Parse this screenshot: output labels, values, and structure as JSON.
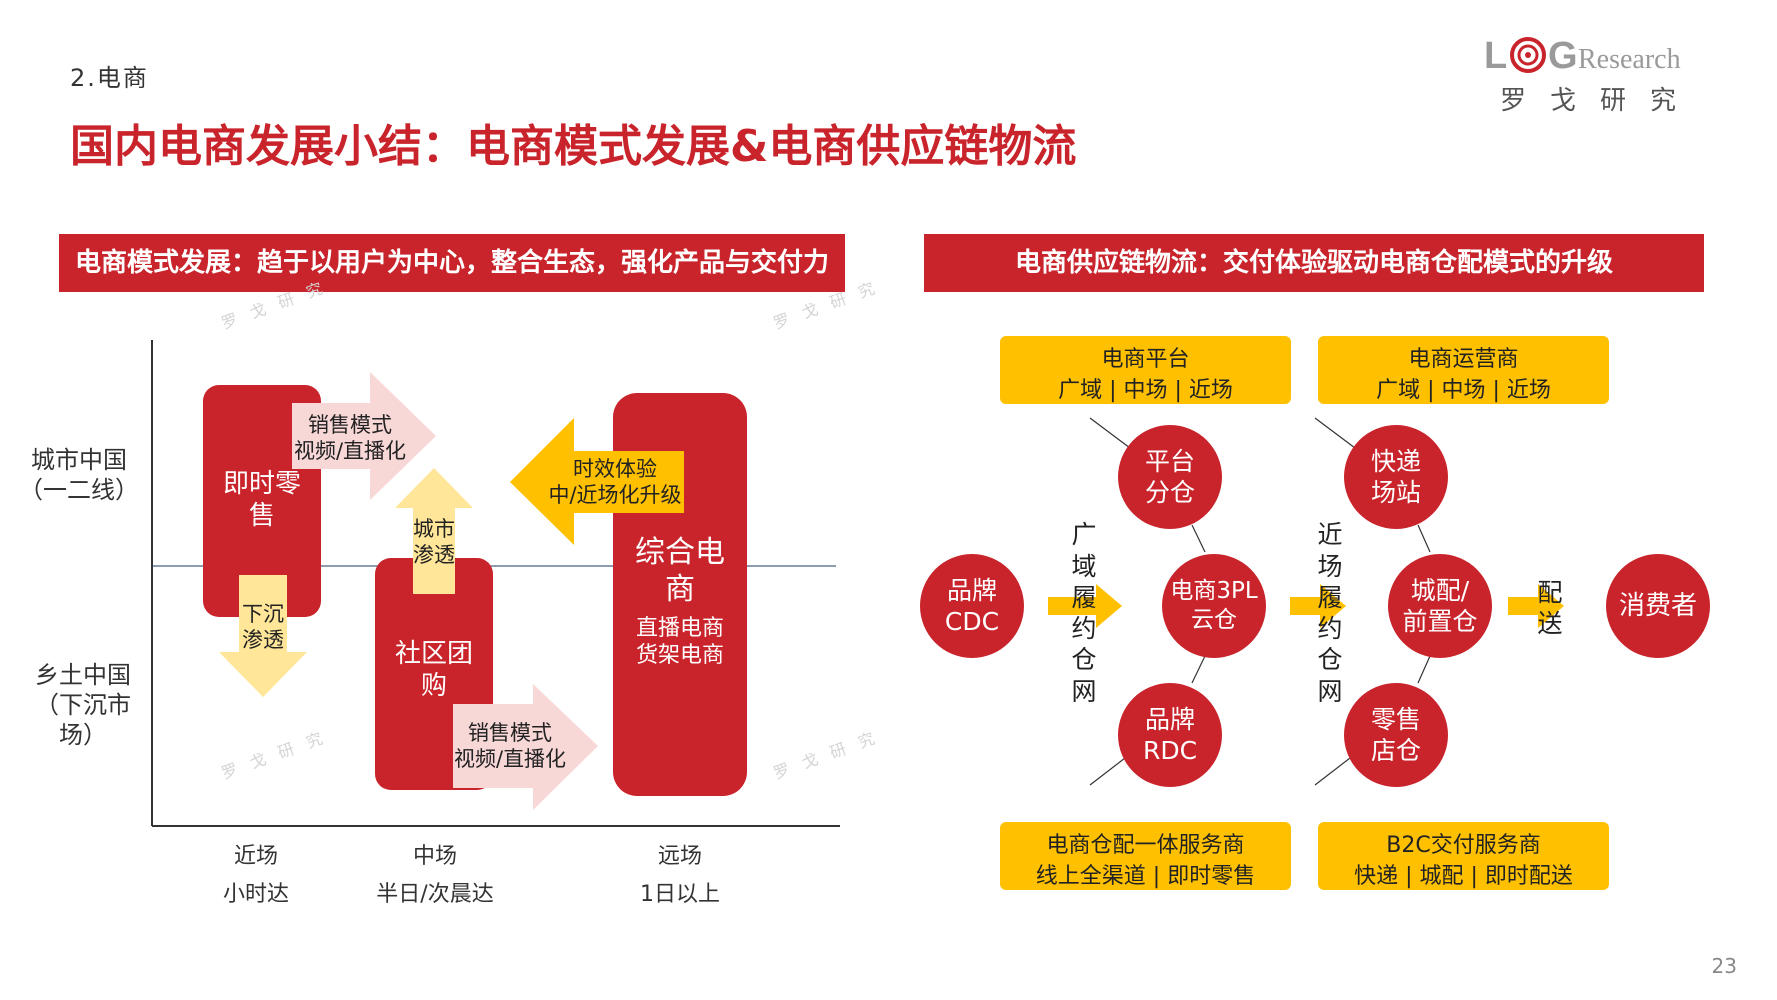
{
  "section_label": "2.电商",
  "page_title": "国内电商发展小结：电商模式发展&电商供应链物流",
  "logo": {
    "brand_text": "LOGResearch",
    "brand_cn": "罗戈研究"
  },
  "colors": {
    "brand_red": "#c9242b",
    "accent_yellow": "#ffc000",
    "light_yellow": "#ffe699",
    "pink": "#f8d7d7"
  },
  "left_panel": {
    "banner": "电商模式发展：趋于以用户为中心，整合生态，强化产品与交付力",
    "y_labels": {
      "upper": "城市中国\n（一二线）",
      "lower": "乡土中国\n（下沉市\n场）"
    },
    "x_labels": [
      {
        "name": "近场",
        "sub": "小时达"
      },
      {
        "name": "中场",
        "sub": "半日/次晨达"
      },
      {
        "name": "远场",
        "sub": "1日以上"
      }
    ],
    "boxes": {
      "instant_retail": "即时零\n售",
      "community_group": "社区团\n购",
      "comprehensive": "综合电\n商",
      "comprehensive_sub": "直播电商\n货架电商"
    },
    "arrows": {
      "sales_mode_top": "销售模式\n视频/直播化",
      "city_penetration": "城市\n渗透",
      "sink_penetration": "下沉\n渗透",
      "timeliness": "时效体验\n中/近场化升级",
      "sales_mode_bottom": "销售模式\n视频/直播化"
    }
  },
  "right_panel": {
    "banner": "电商供应链物流：交付体验驱动电商仓配模式的升级",
    "top_boxes": [
      {
        "title": "电商平台",
        "sub": "广域 | 中场 | 近场"
      },
      {
        "title": "电商运营商",
        "sub": "广域 | 中场 | 近场"
      }
    ],
    "bottom_boxes": [
      {
        "title": "电商仓配一体服务商",
        "sub": "线上全渠道 | 即时零售"
      },
      {
        "title": "B2C交付服务商",
        "sub": "快递 | 城配 | 即时配送"
      }
    ],
    "nodes": {
      "brand_cdc": "品牌\nCDC",
      "platform_warehouse": "平台\n分仓",
      "ecom_3pl": "电商3PL\n云仓",
      "brand_rdc": "品牌\nRDC",
      "express_station": "快递\n场站",
      "city_front": "城配/\n前置仓",
      "retail_store": "零售\n店仓",
      "consumer": "消费者"
    },
    "flow_labels": {
      "wide_area": "广\n域\n履\n约\n仓\n网",
      "near_field": "近\n场\n履\n约\n仓\n网",
      "delivery": "配\n送"
    }
  },
  "page_number": "23"
}
